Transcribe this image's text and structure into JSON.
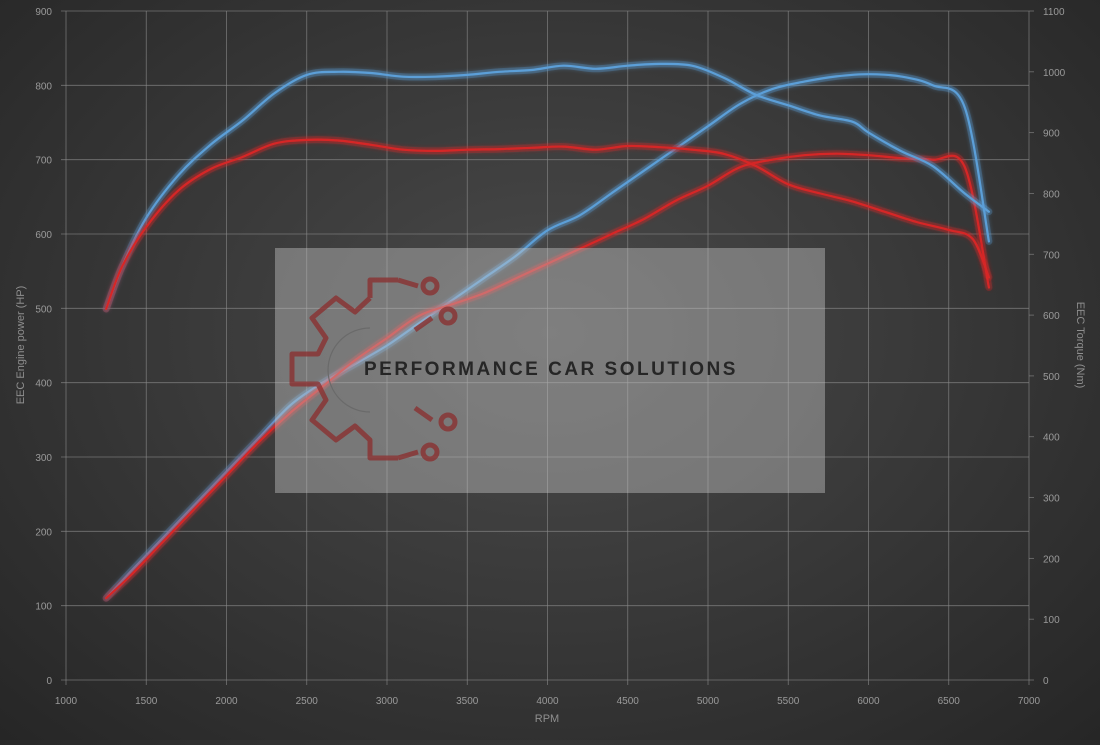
{
  "chart_data": {
    "type": "line",
    "xlabel": "RPM",
    "ylabel_left": "EEC Engine power (HP)",
    "ylabel_right": "EEC Torque (Nm)",
    "xlim": [
      1000,
      7000
    ],
    "ylim_left": [
      0,
      900
    ],
    "ylim_right": [
      0,
      1100
    ],
    "x_ticks": [
      "1000",
      "1500",
      "2000",
      "2500",
      "3000",
      "3500",
      "4000",
      "4500",
      "5000",
      "5500",
      "6000",
      "6500",
      "7000"
    ],
    "y_left_ticks": [
      "0",
      "100",
      "200",
      "300",
      "400",
      "500",
      "600",
      "700",
      "800",
      "900"
    ],
    "y_right_ticks": [
      "0",
      "100",
      "200",
      "300",
      "400",
      "500",
      "600",
      "700",
      "800",
      "900",
      "1000",
      "1100"
    ],
    "grid": true,
    "series": [
      {
        "axis": "left",
        "color": "#5b9fd8",
        "x": [
          1250,
          1400,
          1600,
          1800,
          2000,
          2200,
          2400,
          2600,
          2800,
          3000,
          3200,
          3400,
          3600,
          3800,
          4000,
          4200,
          4400,
          4600,
          4800,
          5000,
          5200,
          5400,
          5600,
          5800,
          6000,
          6200,
          6400,
          6600,
          6750
        ],
        "y": [
          110,
          145,
          190,
          235,
          280,
          325,
          370,
          400,
          425,
          450,
          480,
          510,
          540,
          570,
          605,
          625,
          655,
          685,
          715,
          745,
          775,
          795,
          805,
          812,
          815,
          812,
          800,
          770,
          590
        ]
      },
      {
        "axis": "left",
        "color": "#d62828",
        "x": [
          1250,
          1400,
          1600,
          1800,
          2000,
          2200,
          2400,
          2600,
          2800,
          3000,
          3200,
          3400,
          3600,
          3800,
          4000,
          4200,
          4400,
          4600,
          4800,
          5000,
          5200,
          5400,
          5600,
          5800,
          6000,
          6200,
          6400,
          6600,
          6750
        ],
        "y": [
          110,
          140,
          185,
          230,
          275,
          320,
          360,
          395,
          430,
          460,
          490,
          505,
          520,
          540,
          560,
          580,
          600,
          620,
          645,
          665,
          690,
          700,
          706,
          708,
          706,
          702,
          700,
          690,
          528
        ]
      },
      {
        "axis": "right",
        "color": "#5b9fd8",
        "x": [
          1250,
          1350,
          1500,
          1700,
          1900,
          2100,
          2300,
          2500,
          2700,
          2900,
          3100,
          3300,
          3500,
          3700,
          3900,
          4100,
          4300,
          4500,
          4700,
          4900,
          5100,
          5300,
          5500,
          5700,
          5900,
          6000,
          6200,
          6400,
          6600,
          6750
        ],
        "y": [
          610,
          680,
          760,
          830,
          880,
          920,
          965,
          995,
          1000,
          998,
          992,
          992,
          995,
          1000,
          1003,
          1010,
          1005,
          1010,
          1013,
          1010,
          990,
          962,
          945,
          928,
          918,
          900,
          870,
          845,
          800,
          770
        ]
      },
      {
        "axis": "right",
        "color": "#d62828",
        "x": [
          1250,
          1350,
          1500,
          1700,
          1900,
          2100,
          2300,
          2500,
          2700,
          2900,
          3100,
          3300,
          3500,
          3700,
          3900,
          4100,
          4300,
          4500,
          4700,
          4900,
          5100,
          5300,
          5500,
          5700,
          5900,
          6100,
          6300,
          6500,
          6650,
          6750
        ],
        "y": [
          610,
          680,
          745,
          805,
          840,
          860,
          882,
          888,
          887,
          880,
          872,
          870,
          872,
          873,
          875,
          877,
          872,
          878,
          876,
          872,
          865,
          845,
          815,
          800,
          787,
          770,
          753,
          740,
          725,
          662
        ]
      }
    ]
  },
  "watermark": {
    "text": "PERFORMANCE CAR SOLUTIONS",
    "logo_icon": "gear-circuit-logo-icon"
  }
}
